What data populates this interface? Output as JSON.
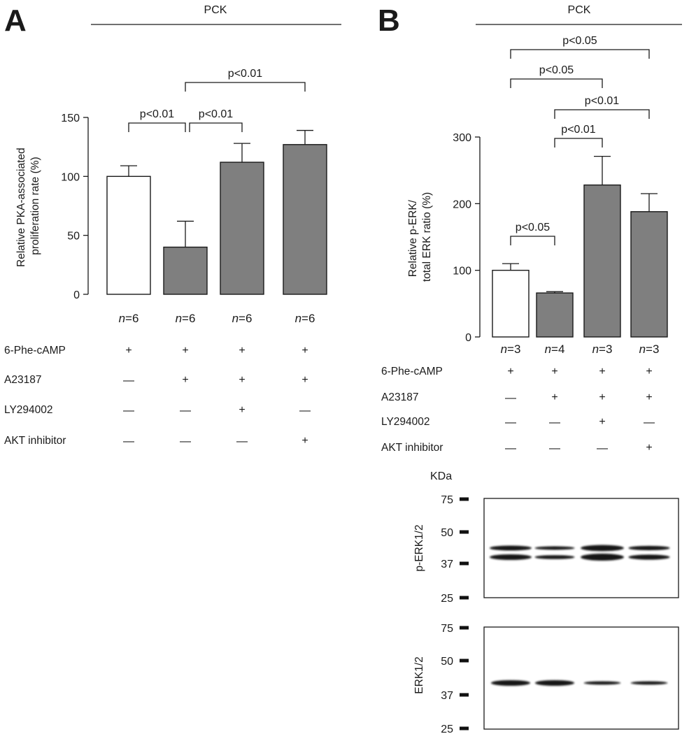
{
  "colors": {
    "control_bar": "#ffffff",
    "treated_bar": "#7f7f7f",
    "ink": "#1a1a1a",
    "blot_band": "#141414"
  },
  "treatment_symbols": {
    "plus": "+",
    "minus": "—"
  },
  "chart_data": [
    {
      "panel": "A",
      "type": "bar",
      "header": "PCK",
      "title": "",
      "xlabel": "",
      "ylabel": "Relative PKA-associated proliferation rate (%)",
      "ylabel_lines": [
        "Relative PKA-associated",
        "proliferation rate (%)"
      ],
      "ylim": [
        0,
        150
      ],
      "yticks": [
        0,
        50,
        100,
        150
      ],
      "categories": [
        "1",
        "2",
        "3",
        "4"
      ],
      "values": [
        100,
        40,
        112,
        127
      ],
      "errors": [
        9,
        22,
        16,
        12
      ],
      "fill": [
        "white",
        "gray",
        "gray",
        "gray"
      ],
      "n_labels": [
        {
          "n": "n",
          "eq": "=6"
        },
        {
          "n": "n",
          "eq": "=6"
        },
        {
          "n": "n",
          "eq": "=6"
        },
        {
          "n": "n",
          "eq": "=6"
        }
      ],
      "comparisons": [
        {
          "from": 0,
          "to": 1,
          "label": "p<0.01",
          "level": 0
        },
        {
          "from": 1,
          "to": 2,
          "label": "p<0.01",
          "level": 0
        },
        {
          "from": 1,
          "to": 3,
          "label": "p<0.01",
          "level": 1
        }
      ],
      "treatments": [
        {
          "name": "6-Phe-cAMP",
          "values": [
            "plus",
            "plus",
            "plus",
            "plus"
          ]
        },
        {
          "name": "A23187",
          "values": [
            "minus",
            "plus",
            "plus",
            "plus"
          ]
        },
        {
          "name": "LY294002",
          "values": [
            "minus",
            "minus",
            "plus",
            "minus"
          ]
        },
        {
          "name": "AKT inhibitor",
          "values": [
            "minus",
            "minus",
            "minus",
            "plus"
          ]
        }
      ]
    },
    {
      "panel": "B",
      "type": "bar",
      "header": "PCK",
      "title": "",
      "xlabel": "",
      "ylabel": "Relative p-ERK/ total ERK ratio (%)",
      "ylabel_lines": [
        "Relative p-ERK/",
        "total ERK ratio (%)"
      ],
      "ylim": [
        0,
        300
      ],
      "yticks": [
        0,
        100,
        200,
        300
      ],
      "categories": [
        "1",
        "2",
        "3",
        "4"
      ],
      "values": [
        100,
        66,
        228,
        188
      ],
      "errors": [
        10,
        2,
        43,
        27
      ],
      "fill": [
        "white",
        "gray",
        "gray",
        "gray"
      ],
      "n_labels": [
        {
          "n": "n",
          "eq": "=3"
        },
        {
          "n": "n",
          "eq": "=4"
        },
        {
          "n": "n",
          "eq": "=3"
        },
        {
          "n": "n",
          "eq": "=3"
        }
      ],
      "comparisons": [
        {
          "from": 0,
          "to": 1,
          "label": "p<0.05",
          "level": 0
        },
        {
          "from": 1,
          "to": 2,
          "label": "p<0.01",
          "level": 1
        },
        {
          "from": 1,
          "to": 3,
          "label": "p<0.01",
          "level": 2
        },
        {
          "from": 0,
          "to": 2,
          "label": "p<0.05",
          "level": 3
        },
        {
          "from": 0,
          "to": 3,
          "label": "p<0.05",
          "level": 4
        }
      ],
      "treatments": [
        {
          "name": "6-Phe-cAMP",
          "values": [
            "plus",
            "plus",
            "plus",
            "plus"
          ]
        },
        {
          "name": "A23187",
          "values": [
            "minus",
            "plus",
            "plus",
            "plus"
          ]
        },
        {
          "name": "LY294002",
          "values": [
            "minus",
            "minus",
            "plus",
            "minus"
          ]
        },
        {
          "name": "AKT inhibitor",
          "values": [
            "minus",
            "minus",
            "minus",
            "plus"
          ]
        }
      ]
    }
  ],
  "western_blot": {
    "unit_label": "KDa",
    "markers": [
      "75",
      "50",
      "37",
      "25"
    ],
    "blots": [
      {
        "label": "p-ERK1/2",
        "band_strength": [
          1.0,
          0.65,
          1.25,
          0.9
        ]
      },
      {
        "label": "ERK1/2",
        "band_strength": [
          1.0,
          1.0,
          0.6,
          0.6
        ]
      }
    ]
  }
}
